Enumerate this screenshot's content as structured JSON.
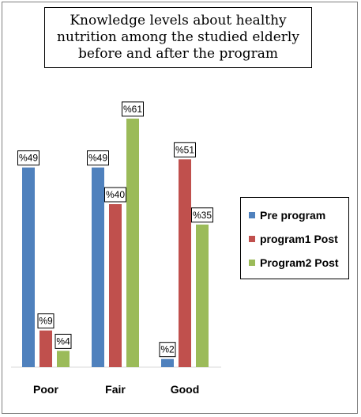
{
  "chart_data": {
    "type": "bar",
    "title": "Knowledge levels about healthy nutrition among the studied elderly before and after the program",
    "categories": [
      "Poor",
      "Fair",
      "Good"
    ],
    "series": [
      {
        "name": "Pre program",
        "color": "#4f81bd",
        "values": [
          49,
          49,
          2
        ],
        "labels": [
          "%49",
          "%49",
          "%2"
        ]
      },
      {
        "name": "program1 Post",
        "color": "#c0504d",
        "values": [
          9,
          40,
          51
        ],
        "labels": [
          "%9",
          "%40",
          "%51"
        ]
      },
      {
        "name": "Program2 Post",
        "color": "#9bbb59",
        "values": [
          4,
          61,
          35
        ],
        "labels": [
          "%4",
          "%61",
          "%35"
        ]
      }
    ],
    "ylim": [
      0,
      61
    ],
    "grid": false,
    "legend_position": "right"
  }
}
